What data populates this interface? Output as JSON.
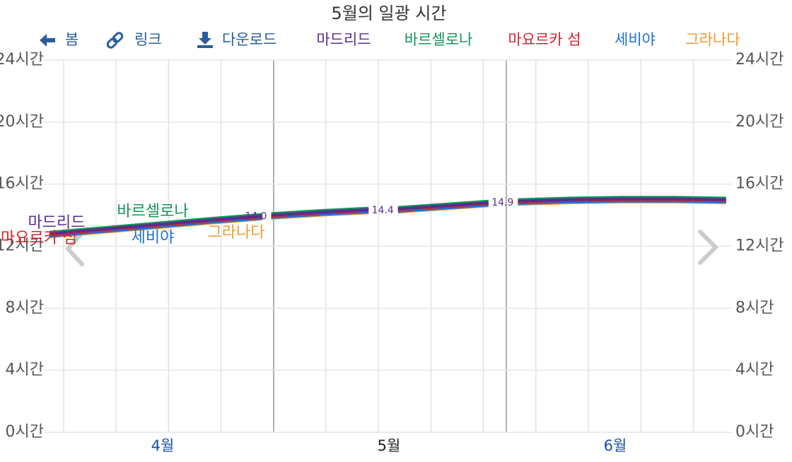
{
  "toolbar": [
    "봄",
    "링크",
    "다운로드"
  ],
  "chart_data": {
    "type": "line",
    "title": "5월의 일광 시간",
    "x": [
      3.5,
      3.74,
      3.98,
      4.22,
      4.44,
      null,
      4.48,
      4.7,
      4.91,
      null,
      5.04,
      5.24,
      5.44,
      null,
      5.57,
      5.8,
      6.03,
      6.26,
      6.49
    ],
    "xlim": [
      3.5,
      6.5
    ],
    "xticks": [
      {
        "value": 4,
        "label": "4월"
      },
      {
        "value": 5,
        "label": "5월"
      },
      {
        "value": 6,
        "label": "6월"
      }
    ],
    "ylim": [
      0,
      24
    ],
    "yticks": [
      {
        "value": 0,
        "label": "0시간"
      },
      {
        "value": 4,
        "label": "4시간"
      },
      {
        "value": 8,
        "label": "8시간"
      },
      {
        "value": 12,
        "label": "12시간"
      },
      {
        "value": 16,
        "label": "16시간"
      },
      {
        "value": 20,
        "label": "20시간"
      },
      {
        "value": 24,
        "label": "24시간"
      }
    ],
    "grid": true,
    "series": [
      {
        "name": "마드리드",
        "color": "#5a2d8c",
        "values": [
          12.8,
          13.1,
          13.4,
          13.7,
          13.95,
          null,
          14.0,
          14.2,
          14.35,
          null,
          14.4,
          14.6,
          14.8,
          null,
          14.9,
          15.0,
          15.05,
          15.05,
          15.0
        ],
        "value_labels": [
          null,
          null,
          null,
          null,
          null,
          null,
          "14.0",
          null,
          null,
          null,
          "14.4",
          null,
          null,
          null,
          "14.9",
          null,
          null,
          null,
          null
        ]
      },
      {
        "name": "바르셀로나",
        "color": "#16935a",
        "values": [
          12.9,
          13.2,
          13.5,
          13.8,
          14.05,
          null,
          14.1,
          14.3,
          14.45,
          null,
          14.5,
          14.7,
          14.9,
          null,
          15.0,
          15.1,
          15.15,
          15.15,
          15.1
        ]
      },
      {
        "name": "마요르카 섬",
        "color": "#d4232e",
        "values": [
          12.75,
          13.05,
          13.35,
          13.65,
          13.9,
          null,
          13.95,
          14.15,
          14.3,
          null,
          14.35,
          14.55,
          14.75,
          null,
          14.85,
          14.95,
          15.0,
          15.0,
          14.95
        ]
      },
      {
        "name": "세비야",
        "color": "#1f6fd6",
        "values": [
          12.65,
          12.95,
          13.25,
          13.55,
          13.8,
          null,
          13.85,
          14.05,
          14.2,
          null,
          14.25,
          14.45,
          14.65,
          null,
          14.75,
          14.85,
          14.9,
          14.9,
          14.85
        ]
      },
      {
        "name": "그라나다",
        "color": "#ee9a2e",
        "values": [
          12.6,
          12.9,
          13.2,
          13.5,
          13.75,
          null,
          13.8,
          14.0,
          14.15,
          null,
          14.2,
          14.4,
          14.6,
          null,
          14.7,
          14.8,
          14.85,
          14.85,
          14.8
        ]
      }
    ]
  }
}
